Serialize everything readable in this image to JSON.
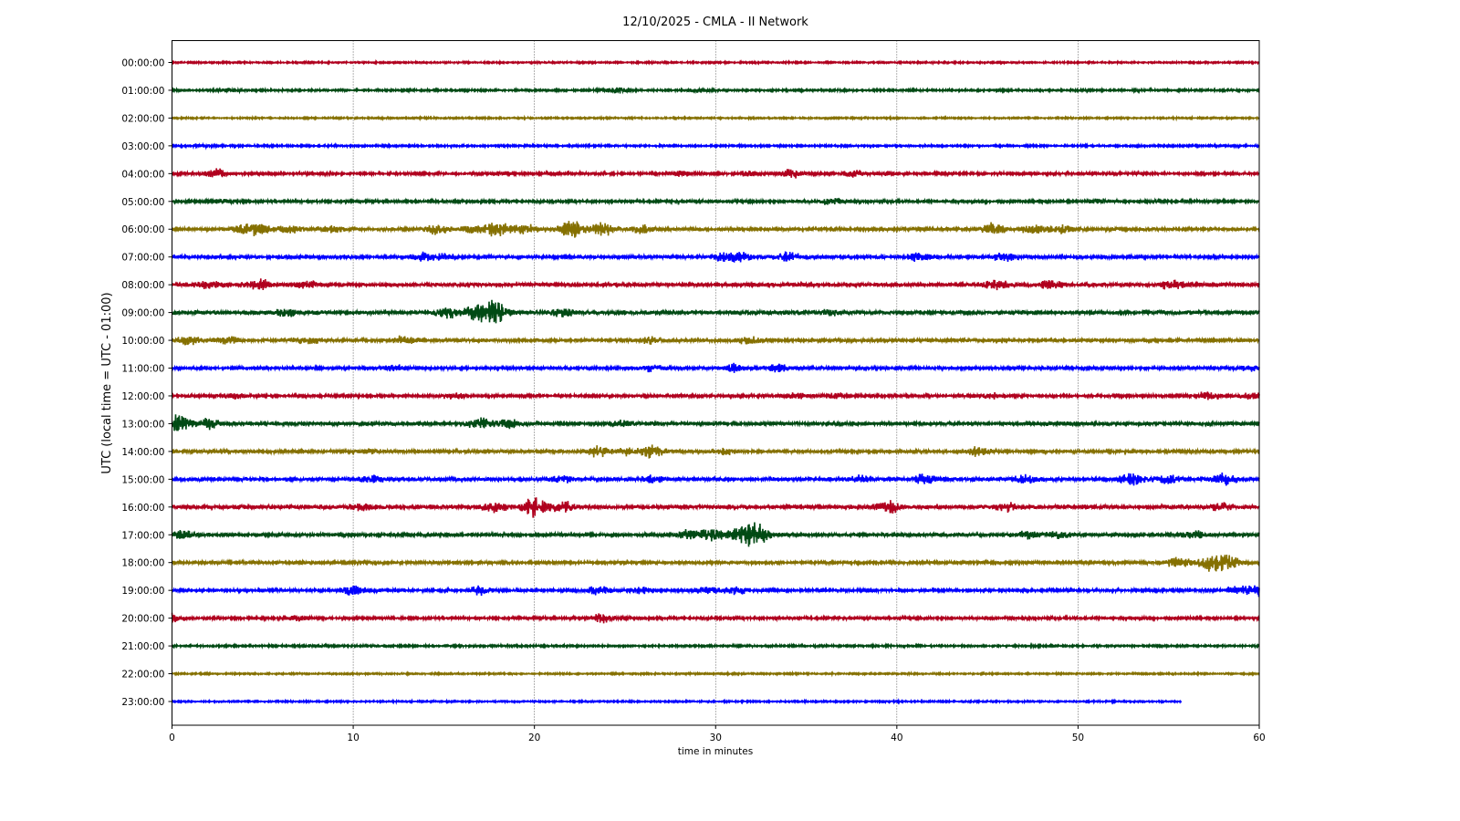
{
  "chart_data": {
    "type": "line",
    "title": "12/10/2025 - CMLA - II Network",
    "xlabel": "time in minutes",
    "ylabel": "UTC (local time = UTC - 01:00)",
    "xlim": [
      0,
      60
    ],
    "xticks": [
      0,
      10,
      20,
      30,
      40,
      50,
      60
    ],
    "grid": "vertical dotted at x ticks",
    "colors": [
      "#b0001e",
      "#004a14",
      "#857000",
      "#0000ff"
    ],
    "amplitude_units": "relative (1 = one hour row spacing)",
    "rows": [
      {
        "label": "00:00:00",
        "noise": 0.05,
        "events": []
      },
      {
        "label": "01:00:00",
        "noise": 0.06,
        "events": [
          [
            3.3,
            0.15
          ],
          [
            24.5,
            0.25
          ],
          [
            29,
            0.15
          ]
        ]
      },
      {
        "label": "02:00:00",
        "noise": 0.05,
        "events": []
      },
      {
        "label": "03:00:00",
        "noise": 0.06,
        "events": [
          [
            1.5,
            0.12
          ]
        ]
      },
      {
        "label": "04:00:00",
        "noise": 0.08,
        "events": [
          [
            2.4,
            0.35
          ],
          [
            18.2,
            0.15
          ],
          [
            28,
            0.18
          ],
          [
            31.8,
            0.18
          ],
          [
            34.2,
            0.4
          ],
          [
            37.6,
            0.3
          ],
          [
            39.5,
            0.15
          ]
        ]
      },
      {
        "label": "05:00:00",
        "noise": 0.08,
        "events": [
          [
            2.9,
            0.2
          ],
          [
            36.4,
            0.3
          ],
          [
            51.2,
            0.2
          ]
        ]
      },
      {
        "label": "06:00:00",
        "noise": 0.11,
        "events": [
          [
            3.8,
            0.3
          ],
          [
            4.8,
            0.45
          ],
          [
            6.5,
            0.25
          ],
          [
            8.8,
            0.35
          ],
          [
            14.6,
            0.35
          ],
          [
            16.6,
            0.3
          ],
          [
            18,
            0.6
          ],
          [
            19.5,
            0.35
          ],
          [
            22,
            0.75
          ],
          [
            23.7,
            0.6
          ],
          [
            26,
            0.35
          ],
          [
            45.3,
            0.4
          ],
          [
            47.5,
            0.3
          ],
          [
            49,
            0.35
          ]
        ]
      },
      {
        "label": "07:00:00",
        "noise": 0.11,
        "events": [
          [
            13.8,
            0.3
          ],
          [
            15,
            0.25
          ],
          [
            30.5,
            0.4
          ],
          [
            31.5,
            0.3
          ],
          [
            34,
            0.35
          ],
          [
            41.2,
            0.3
          ],
          [
            46,
            0.35
          ]
        ]
      },
      {
        "label": "08:00:00",
        "noise": 0.12,
        "events": [
          [
            2,
            0.3
          ],
          [
            4.8,
            0.4
          ],
          [
            7.5,
            0.3
          ],
          [
            45.4,
            0.4
          ],
          [
            48.5,
            0.3
          ],
          [
            55.2,
            0.35
          ]
        ]
      },
      {
        "label": "09:00:00",
        "noise": 0.13,
        "events": [
          [
            6.3,
            0.25
          ],
          [
            15.3,
            0.4
          ],
          [
            16.8,
            0.6
          ],
          [
            17.8,
            1.0
          ],
          [
            21.5,
            0.3
          ],
          [
            36.3,
            0.2
          ]
        ]
      },
      {
        "label": "10:00:00",
        "noise": 0.11,
        "events": [
          [
            0.8,
            0.35
          ],
          [
            3,
            0.3
          ],
          [
            7.5,
            0.25
          ],
          [
            12.8,
            0.3
          ],
          [
            26.5,
            0.22
          ],
          [
            31.9,
            0.25
          ]
        ]
      },
      {
        "label": "11:00:00",
        "noise": 0.1,
        "events": [
          [
            12.3,
            0.22
          ],
          [
            26.5,
            0.25
          ],
          [
            31,
            0.3
          ],
          [
            33.5,
            0.3
          ],
          [
            59.5,
            0.2
          ]
        ]
      },
      {
        "label": "12:00:00",
        "noise": 0.09,
        "events": [
          [
            3.5,
            0.25
          ],
          [
            15.6,
            0.25
          ],
          [
            34.5,
            0.2
          ],
          [
            36.6,
            0.25
          ],
          [
            45.3,
            0.2
          ],
          [
            57.2,
            0.3
          ],
          [
            59.5,
            0.25
          ]
        ]
      },
      {
        "label": "13:00:00",
        "noise": 0.12,
        "events": [
          [
            0.4,
            0.6
          ],
          [
            2,
            0.35
          ],
          [
            17,
            0.4
          ],
          [
            18.5,
            0.35
          ],
          [
            24.8,
            0.2
          ]
        ]
      },
      {
        "label": "14:00:00",
        "noise": 0.1,
        "events": [
          [
            11,
            0.2
          ],
          [
            23.5,
            0.4
          ],
          [
            25,
            0.3
          ],
          [
            26.5,
            0.5
          ],
          [
            30.5,
            0.25
          ],
          [
            44.5,
            0.3
          ]
        ]
      },
      {
        "label": "15:00:00",
        "noise": 0.12,
        "events": [
          [
            11,
            0.25
          ],
          [
            21.5,
            0.25
          ],
          [
            26.4,
            0.25
          ],
          [
            38,
            0.3
          ],
          [
            41.5,
            0.35
          ],
          [
            47,
            0.3
          ],
          [
            53,
            0.45
          ],
          [
            55,
            0.35
          ],
          [
            58,
            0.4
          ]
        ]
      },
      {
        "label": "16:00:00",
        "noise": 0.13,
        "events": [
          [
            10.5,
            0.25
          ],
          [
            17.8,
            0.5
          ],
          [
            20,
            0.75
          ],
          [
            21.5,
            0.45
          ],
          [
            39.5,
            0.45
          ],
          [
            46,
            0.3
          ],
          [
            58,
            0.3
          ]
        ]
      },
      {
        "label": "17:00:00",
        "noise": 0.11,
        "events": [
          [
            0.5,
            0.3
          ],
          [
            28.5,
            0.3
          ],
          [
            29.8,
            0.5
          ],
          [
            31.3,
            0.45
          ],
          [
            32.2,
            0.9
          ],
          [
            47.2,
            0.25
          ],
          [
            49,
            0.25
          ],
          [
            56.5,
            0.25
          ]
        ]
      },
      {
        "label": "18:00:00",
        "noise": 0.1,
        "events": [
          [
            55.5,
            0.4
          ],
          [
            57.2,
            0.5
          ],
          [
            58.1,
            0.85
          ]
        ]
      },
      {
        "label": "19:00:00",
        "noise": 0.09,
        "events": [
          [
            10.1,
            0.45
          ],
          [
            17,
            0.3
          ],
          [
            23.5,
            0.35
          ],
          [
            26,
            0.25
          ],
          [
            29.5,
            0.3
          ],
          [
            31.2,
            0.25
          ],
          [
            58.8,
            0.3
          ],
          [
            60,
            0.4
          ]
        ]
      },
      {
        "label": "20:00:00",
        "noise": 0.08,
        "events": [
          [
            0,
            0.4
          ],
          [
            7,
            0.2
          ],
          [
            23.7,
            0.35
          ]
        ]
      },
      {
        "label": "21:00:00",
        "noise": 0.06,
        "events": [
          [
            7.8,
            0.12
          ]
        ]
      },
      {
        "label": "22:00:00",
        "noise": 0.05,
        "events": []
      },
      {
        "label": "23:00:00",
        "noise": 0.05,
        "events": [],
        "end_minute": 55.7
      }
    ]
  }
}
